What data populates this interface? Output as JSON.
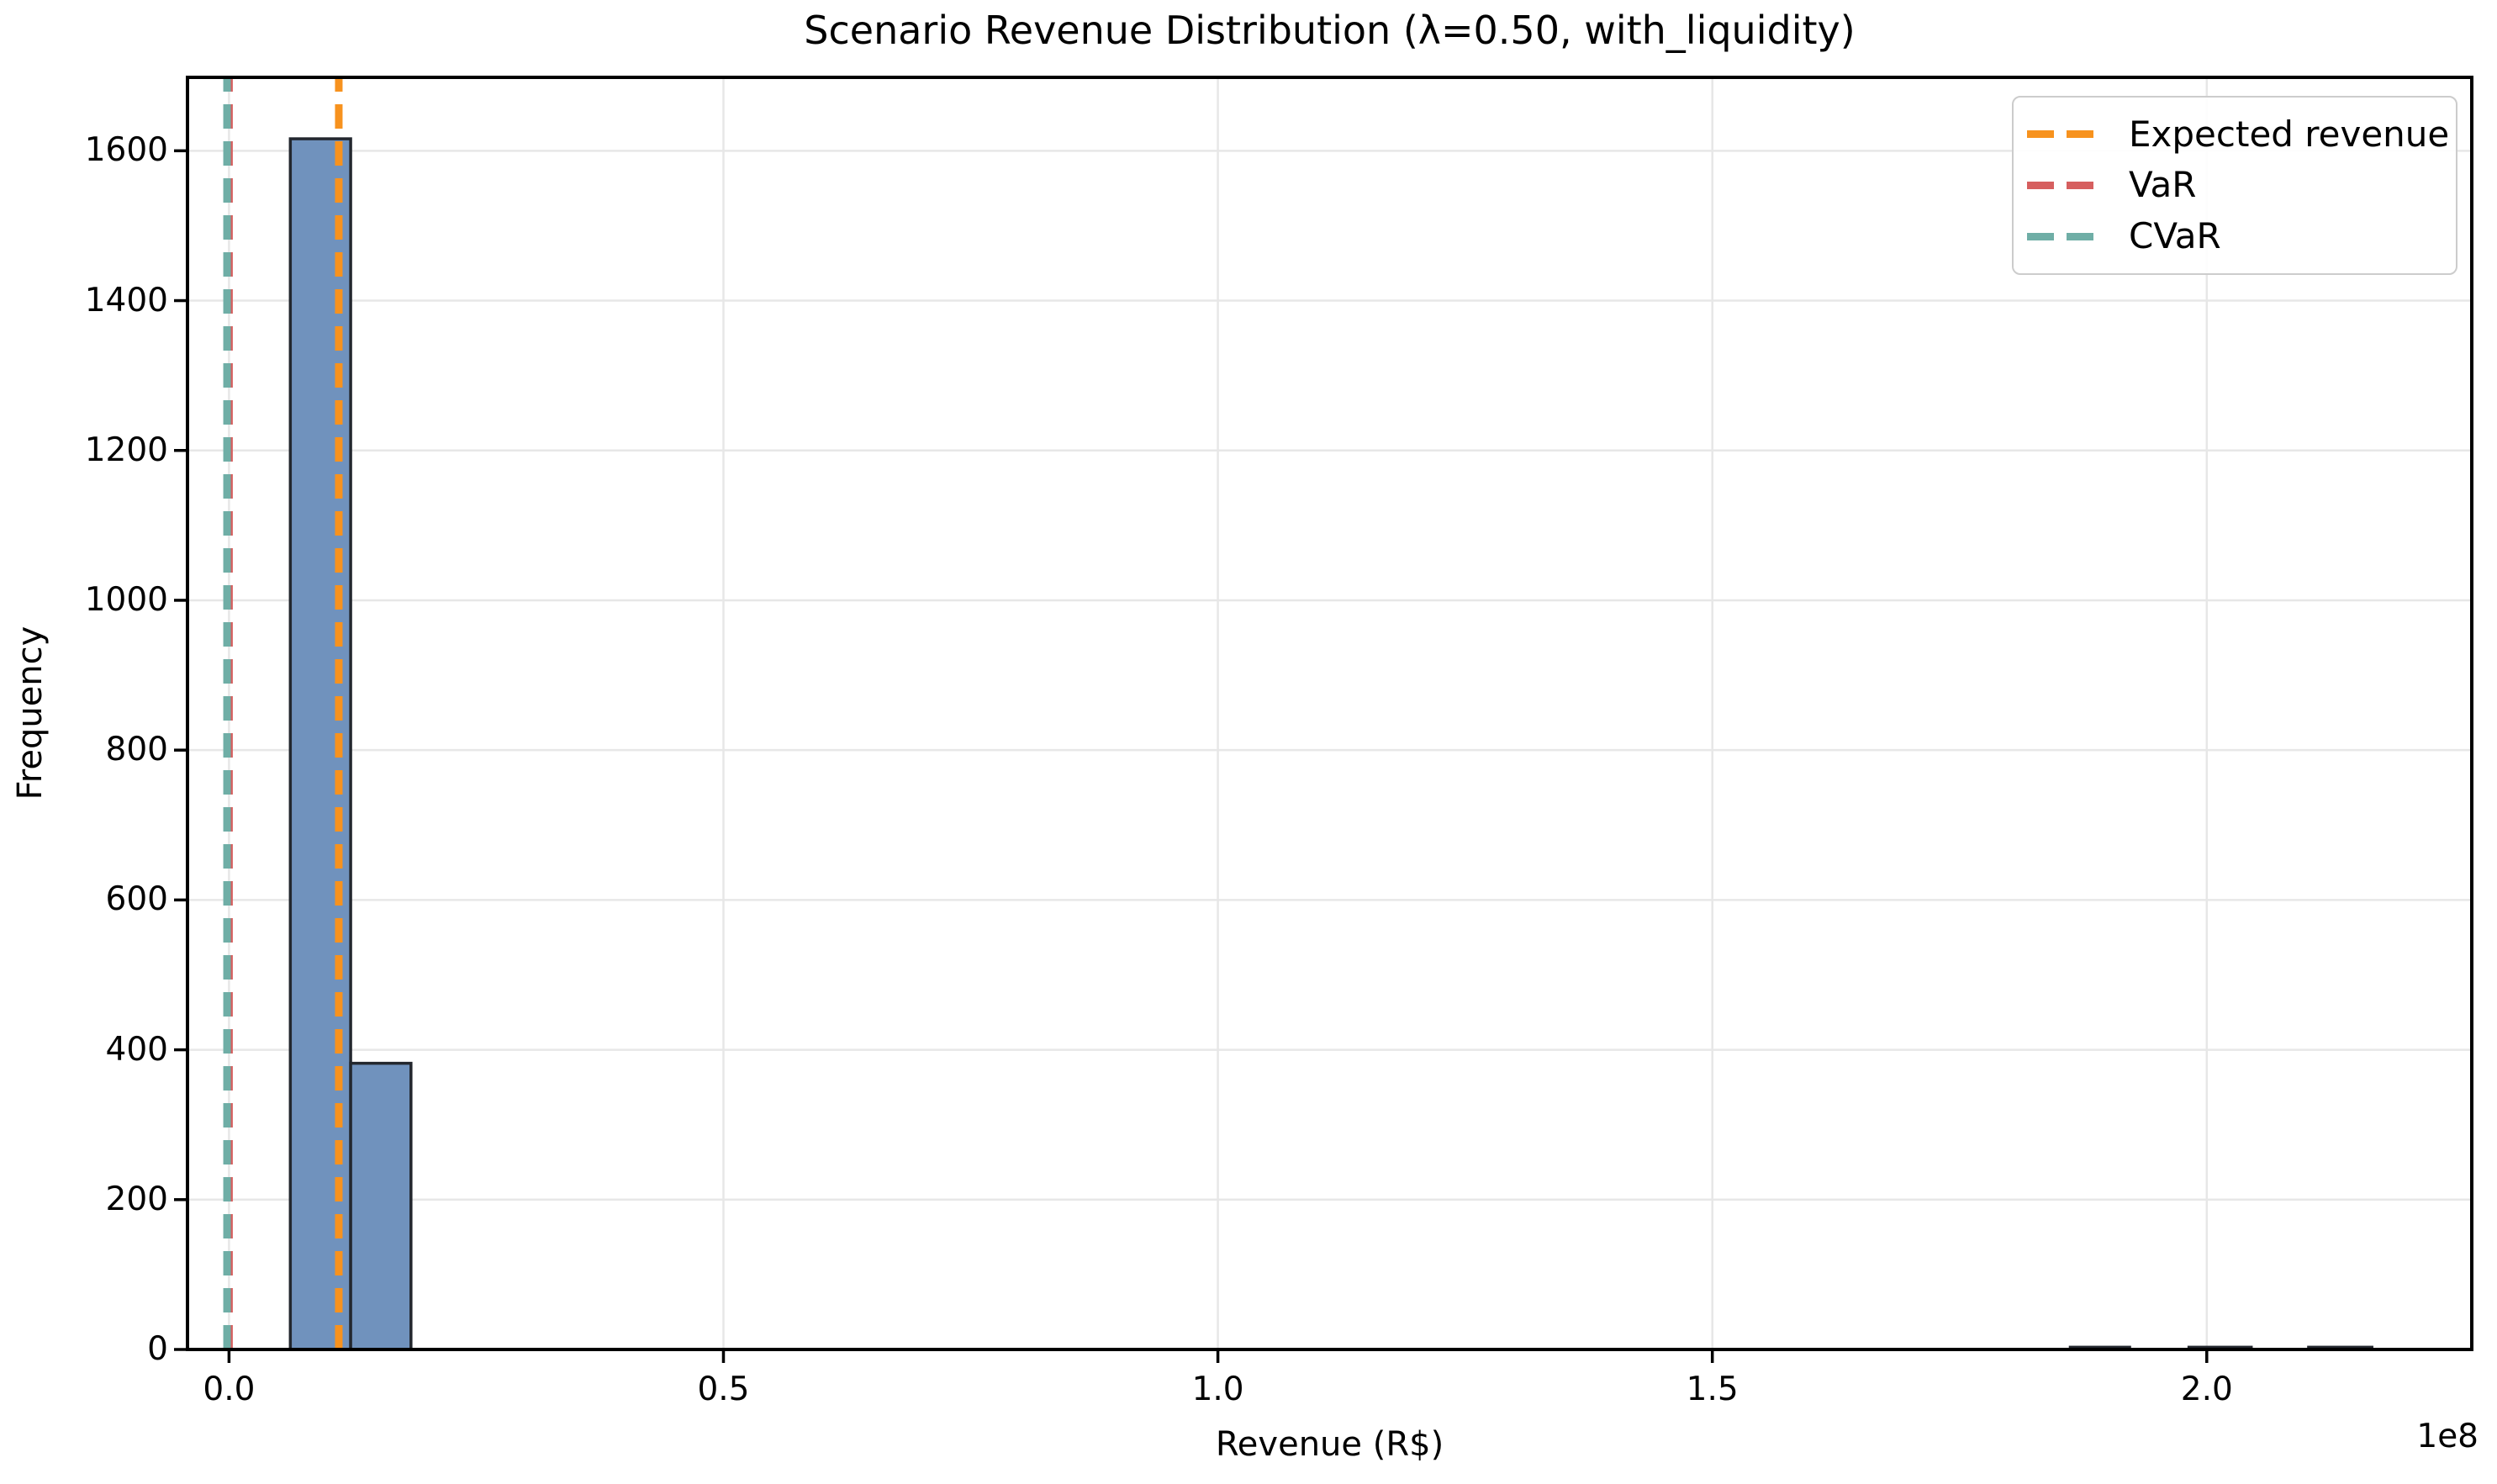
{
  "chart_data": {
    "type": "histogram",
    "title": "Scenario Revenue Distribution (λ=0.50, with_liquidity)",
    "xlabel": "Revenue (R$)",
    "ylabel": "Frequency",
    "x_offset_label": "1e8",
    "xlim": [
      -0.042,
      2.268
    ],
    "ylim": [
      0,
      1698
    ],
    "grid": true,
    "grid_color": "#E7E7E7",
    "legend_position": "upper right",
    "x_ticks": [
      {
        "value": 0.0,
        "label": "0.0"
      },
      {
        "value": 0.5,
        "label": "0.5"
      },
      {
        "value": 1.0,
        "label": "1.0"
      },
      {
        "value": 1.5,
        "label": "1.5"
      },
      {
        "value": 2.0,
        "label": "2.0"
      }
    ],
    "y_ticks": [
      {
        "value": 0,
        "label": "0"
      },
      {
        "value": 200,
        "label": "200"
      },
      {
        "value": 400,
        "label": "400"
      },
      {
        "value": 600,
        "label": "600"
      },
      {
        "value": 800,
        "label": "800"
      },
      {
        "value": 1000,
        "label": "1000"
      },
      {
        "value": 1200,
        "label": "1200"
      },
      {
        "value": 1400,
        "label": "1400"
      },
      {
        "value": 1600,
        "label": "1600"
      }
    ],
    "bars": {
      "fill": "#7092BD",
      "edge": "#23272E",
      "x_unit": "1e8 R$",
      "bins": [
        {
          "x0": 0.062,
          "x1": 0.123,
          "count": 1616
        },
        {
          "x0": 0.123,
          "x1": 0.184,
          "count": 382
        },
        {
          "x0": 1.862,
          "x1": 1.922,
          "count": 3
        },
        {
          "x0": 1.982,
          "x1": 2.045,
          "count": 3
        },
        {
          "x0": 2.103,
          "x1": 2.167,
          "count": 3
        }
      ]
    },
    "vlines": [
      {
        "id": "expected-revenue",
        "label": "Expected revenue",
        "x": 0.111,
        "color": "#F7921E"
      },
      {
        "id": "var",
        "label": "VaR",
        "x": 0.0,
        "color": "#D65F5F"
      },
      {
        "id": "cvar",
        "label": "CVaR",
        "x": -0.002,
        "color": "#6FAEA6"
      }
    ]
  }
}
